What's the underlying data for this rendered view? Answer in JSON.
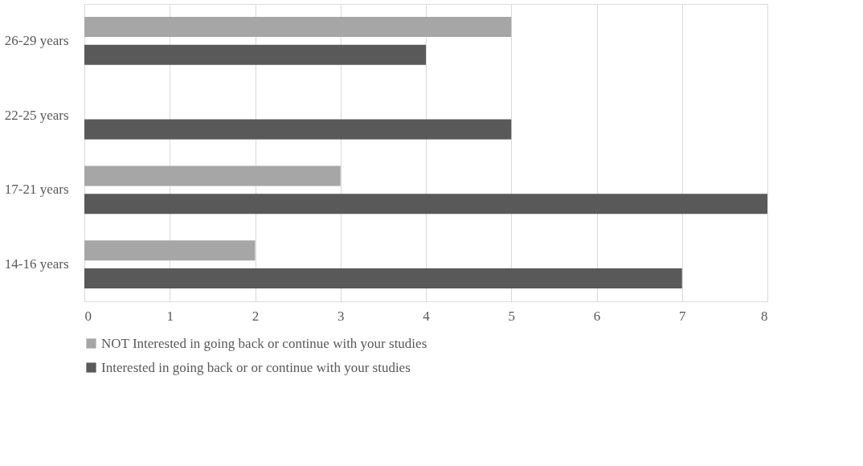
{
  "chart_data": {
    "type": "bar",
    "orientation": "horizontal",
    "categories": [
      "26-29 years",
      "22-25 years",
      "17-21 years",
      "14-16 years"
    ],
    "series": [
      {
        "name": "NOT Interested in going back or  continue with your studies",
        "color": "#a6a6a6",
        "values": [
          5,
          null,
          3,
          2
        ]
      },
      {
        "name": "Interested in going back or or continue with your studies",
        "color": "#595959",
        "values": [
          4,
          5,
          8,
          7
        ]
      }
    ],
    "xlim": [
      0,
      8
    ],
    "xticks": [
      0,
      1,
      2,
      3,
      4,
      5,
      6,
      7,
      8
    ],
    "grid": "x",
    "legend": "bottom"
  }
}
